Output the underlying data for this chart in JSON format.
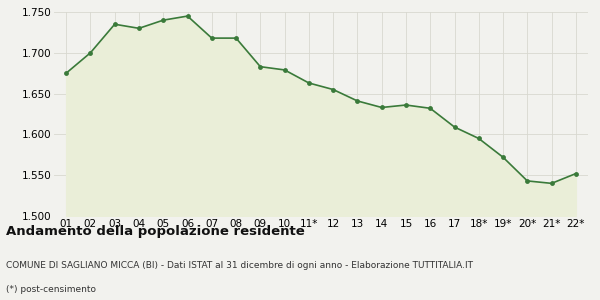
{
  "x_labels": [
    "01",
    "02",
    "03",
    "04",
    "05",
    "06",
    "07",
    "08",
    "09",
    "10",
    "11*",
    "12",
    "13",
    "14",
    "15",
    "16",
    "17",
    "18*",
    "19*",
    "20*",
    "21*",
    "22*"
  ],
  "y_values": [
    1675,
    1700,
    1735,
    1730,
    1740,
    1745,
    1718,
    1718,
    1683,
    1679,
    1663,
    1655,
    1641,
    1633,
    1636,
    1632,
    1609,
    1595,
    1572,
    1543,
    1540,
    1552
  ],
  "ylim": [
    1500,
    1750
  ],
  "yticks": [
    1500,
    1550,
    1600,
    1650,
    1700,
    1750
  ],
  "line_color": "#3a7a3a",
  "fill_color": "#eaeed8",
  "marker_color": "#3a7a3a",
  "background_color": "#f2f2ee",
  "grid_color": "#d8d8d0",
  "title": "Andamento della popolazione residente",
  "subtitle1": "COMUNE DI SAGLIANO MICCA (BI) - Dati ISTAT al 31 dicembre di ogni anno - Elaborazione TUTTITALIA.IT",
  "subtitle2": "(*) post-censimento",
  "title_fontsize": 9.5,
  "subtitle_fontsize": 6.5,
  "tick_fontsize": 7.5
}
